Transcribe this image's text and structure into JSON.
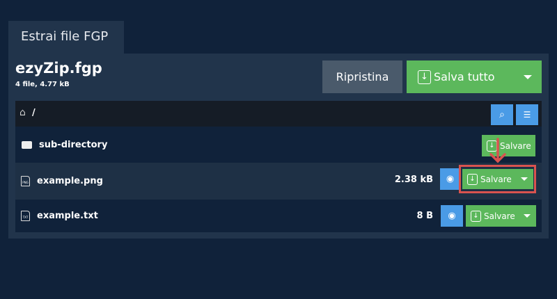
{
  "tab": {
    "label": "Estrai file FGP"
  },
  "archive": {
    "title": "ezyZip.fgp",
    "summary": "4 file, 4.77 kB"
  },
  "toolbar": {
    "reset_label": "Ripristina",
    "save_all_label": "Salva tutto"
  },
  "breadcrumb": {
    "path": "/"
  },
  "rows": [
    {
      "name": "sub-directory",
      "type": "folder",
      "save_label": "Salvare"
    },
    {
      "name": "example.png",
      "type": "file",
      "ext": "PNG",
      "size": "2.38 kB",
      "save_label": "Salvare"
    },
    {
      "name": "example.txt",
      "type": "file",
      "ext": "TXT",
      "size": "8 B",
      "save_label": "Salvare"
    }
  ],
  "colors": {
    "green": "#5cb85c",
    "blue": "#4a9be6",
    "highlight": "#d9534f"
  }
}
